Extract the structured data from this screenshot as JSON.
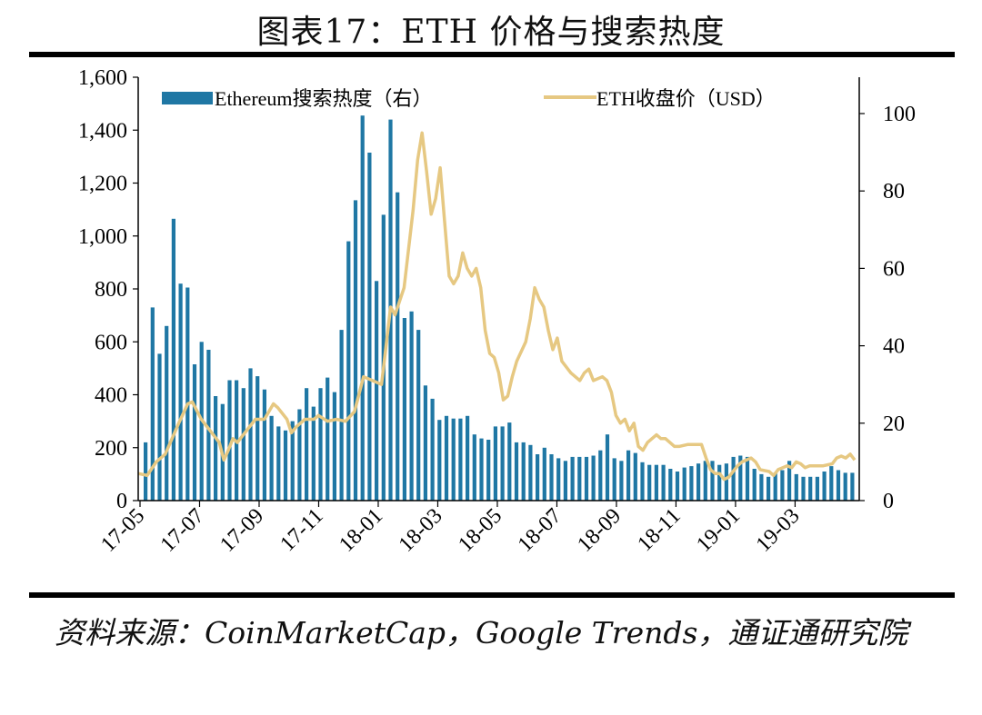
{
  "title": "图表17：ETH 价格与搜索热度",
  "source": "资料来源：CoinMarketCap，Google Trends，通证通研究院",
  "chart_data": {
    "type": "bar+line",
    "left_axis": {
      "ylim": [
        0,
        1600
      ],
      "ticks": [
        "0",
        "200",
        "400",
        "600",
        "800",
        "1,000",
        "1,200",
        "1,400",
        "1,600"
      ]
    },
    "right_axis": {
      "ylim": [
        0,
        110
      ],
      "ticks": [
        "0",
        "20",
        "40",
        "60",
        "80",
        "100"
      ]
    },
    "x_ticks": [
      "17-05",
      "17-07",
      "17-09",
      "17-11",
      "18-01",
      "18-03",
      "18-05",
      "18-07",
      "18-09",
      "18-11",
      "19-01",
      "19-03"
    ],
    "grid": false,
    "legend_position": "top",
    "colors": {
      "bars": "#1f77a4",
      "line": "#e6c882"
    },
    "series": [
      {
        "name": "Ethereum搜索热度（右）",
        "type": "bar",
        "axis": "left",
        "values": [
          220,
          730,
          555,
          660,
          1065,
          820,
          805,
          515,
          600,
          570,
          395,
          365,
          455,
          455,
          425,
          500,
          470,
          420,
          320,
          280,
          265,
          300,
          345,
          425,
          355,
          425,
          465,
          410,
          645,
          980,
          1135,
          1455,
          1315,
          830,
          1080,
          1440,
          1165,
          690,
          715,
          645,
          435,
          385,
          305,
          320,
          310,
          310,
          320,
          250,
          235,
          230,
          280,
          280,
          295,
          220,
          220,
          210,
          175,
          200,
          175,
          160,
          150,
          165,
          165,
          165,
          170,
          190,
          250,
          160,
          150,
          190,
          180,
          145,
          135,
          135,
          135,
          120,
          110,
          125,
          130,
          140,
          150,
          150,
          135,
          140,
          165,
          170,
          165,
          120,
          100,
          90,
          105,
          115,
          150,
          100,
          90,
          90,
          90,
          110,
          130,
          115,
          105,
          105
        ]
      },
      {
        "name": "ETH收盘价（USD）",
        "type": "line",
        "axis": "right",
        "points": [
          [
            0,
            7
          ],
          [
            2,
            6.5
          ],
          [
            4,
            10
          ],
          [
            6,
            12
          ],
          [
            9,
            20
          ],
          [
            11,
            25
          ],
          [
            12,
            25.5
          ],
          [
            14,
            21
          ],
          [
            16,
            18
          ],
          [
            18,
            15
          ],
          [
            19,
            10.5
          ],
          [
            20,
            13
          ],
          [
            21,
            16
          ],
          [
            22,
            15
          ],
          [
            24,
            18
          ],
          [
            26,
            21
          ],
          [
            28,
            21
          ],
          [
            30,
            25
          ],
          [
            31,
            24
          ],
          [
            33,
            21
          ],
          [
            34,
            17.5
          ],
          [
            35,
            19
          ],
          [
            37,
            21
          ],
          [
            39,
            21
          ],
          [
            40,
            22
          ],
          [
            42,
            20.5
          ],
          [
            44,
            21
          ],
          [
            46,
            20.5
          ],
          [
            48,
            23
          ],
          [
            50,
            32
          ],
          [
            52,
            31
          ],
          [
            54,
            30
          ],
          [
            56,
            50
          ],
          [
            57,
            48
          ],
          [
            59,
            55
          ],
          [
            61,
            75
          ],
          [
            62,
            88
          ],
          [
            63,
            95
          ],
          [
            64,
            85
          ],
          [
            65,
            74
          ],
          [
            66,
            78
          ],
          [
            67,
            86
          ],
          [
            68,
            72
          ],
          [
            69,
            58
          ],
          [
            70,
            56
          ],
          [
            71,
            58
          ],
          [
            72,
            64
          ],
          [
            73,
            60
          ],
          [
            74,
            58
          ],
          [
            75,
            60
          ],
          [
            76,
            55
          ],
          [
            77,
            44
          ],
          [
            78,
            38
          ],
          [
            79,
            37
          ],
          [
            80,
            33
          ],
          [
            81,
            26
          ],
          [
            82,
            27
          ],
          [
            83,
            32
          ],
          [
            84,
            36
          ],
          [
            86,
            41
          ],
          [
            87,
            47
          ],
          [
            88,
            55
          ],
          [
            89,
            52
          ],
          [
            90,
            50
          ],
          [
            91,
            44
          ],
          [
            92,
            39
          ],
          [
            93,
            42
          ],
          [
            94,
            36
          ],
          [
            96,
            33
          ],
          [
            98,
            31
          ],
          [
            99,
            33
          ],
          [
            100,
            34
          ],
          [
            101,
            31
          ],
          [
            103,
            32
          ],
          [
            104,
            31
          ],
          [
            105,
            28
          ],
          [
            106,
            22
          ],
          [
            107,
            20
          ],
          [
            108,
            21
          ],
          [
            109,
            18
          ],
          [
            110,
            20
          ],
          [
            111,
            14
          ],
          [
            112,
            13
          ],
          [
            113,
            15
          ],
          [
            114,
            16
          ],
          [
            115,
            17
          ],
          [
            116,
            16
          ],
          [
            117,
            16
          ],
          [
            118,
            15
          ],
          [
            119,
            14
          ],
          [
            120,
            14
          ],
          [
            122,
            14.5
          ],
          [
            125,
            14.5
          ],
          [
            126,
            11
          ],
          [
            127,
            8
          ],
          [
            128,
            7
          ],
          [
            129,
            7
          ],
          [
            130,
            5.5
          ],
          [
            131,
            6
          ],
          [
            132,
            7.5
          ],
          [
            133,
            9
          ],
          [
            134,
            10
          ],
          [
            136,
            11
          ],
          [
            137,
            10
          ],
          [
            138,
            8
          ],
          [
            140,
            7.5
          ],
          [
            141,
            6.5
          ],
          [
            142,
            8
          ],
          [
            143,
            8.5
          ],
          [
            144,
            9
          ],
          [
            145,
            8.5
          ],
          [
            146,
            10
          ],
          [
            147,
            9.5
          ],
          [
            148,
            8.5
          ],
          [
            149,
            9
          ],
          [
            150,
            9
          ],
          [
            152,
            9
          ],
          [
            154,
            9.5
          ],
          [
            155,
            11
          ],
          [
            156,
            11.5
          ],
          [
            157,
            11
          ],
          [
            158,
            12
          ],
          [
            159,
            10.5
          ]
        ]
      }
    ]
  }
}
